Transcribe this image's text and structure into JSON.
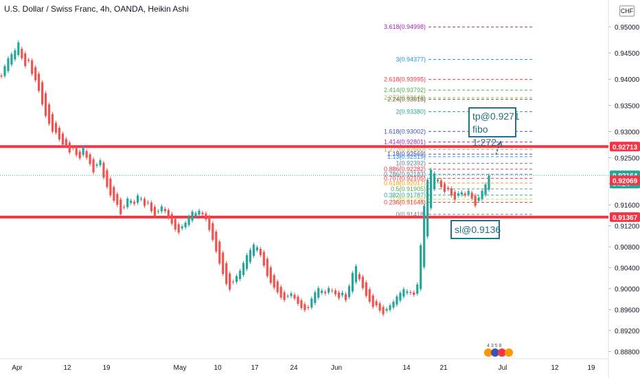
{
  "header": {
    "title": "U.S. Dollar / Swiss Franc, 4h, OANDA, Heikin Ashi",
    "currency_button": "CHF"
  },
  "colors": {
    "up": "#26a69a",
    "down": "#ef5350",
    "sr_line": "#f23645",
    "current_price": "#26a69a",
    "annotation": "#26708a"
  },
  "annotations": {
    "tp_line1": "tp@0.9271",
    "tp_line2": "fibo 1:272",
    "sl": "sl@0.9136"
  },
  "upcoming_events": {
    "numbers": "4 3 5 8"
  },
  "chart_data": {
    "type": "candlestick",
    "title": "U.S. Dollar / Swiss Franc, 4h, OANDA, Heikin Ashi",
    "ylim": [
      0.887,
      0.9525
    ],
    "y_ticks": [
      "0.95000",
      "0.94500",
      "0.94000",
      "0.93500",
      "0.93000",
      "0.92500",
      "0.92000",
      "0.91600",
      "0.91200",
      "0.90800",
      "0.90400",
      "0.90000",
      "0.89600",
      "0.89200",
      "0.88800"
    ],
    "x_ticks": [
      "Apr",
      "12",
      "19",
      "May",
      "10",
      "17",
      "24",
      "Jun",
      "14",
      "21",
      "Jul",
      "12",
      "19"
    ],
    "price_marks": [
      {
        "label": "0.92713",
        "kind": "resistance",
        "color": "#f23645"
      },
      {
        "label": "0.92164",
        "kind": "current",
        "color": "#26a69a",
        "countdown": "04:24"
      },
      {
        "label": "0.92069",
        "kind": "open",
        "color": "#f23645"
      },
      {
        "label": "0.91367",
        "kind": "support",
        "color": "#f23645"
      }
    ],
    "horizontal_lines": [
      {
        "price": 0.92713,
        "label": "0.92713"
      },
      {
        "price": 0.91367,
        "label": "0.91367"
      }
    ],
    "fib_levels": [
      {
        "label": "3.618(0.94998)",
        "value": 0.94998,
        "color": "#9c27b0"
      },
      {
        "label": "3(0.94377)",
        "value": 0.94377,
        "color": "#2196f3"
      },
      {
        "label": "2.618(0.93995)",
        "value": 0.93995,
        "color": "#f23645"
      },
      {
        "label": "2.414(0.93792)",
        "value": 0.93792,
        "color": "#4caf50"
      },
      {
        "label": "2.272(0.93648)",
        "value": 0.93648,
        "color": "#8bc34a"
      },
      {
        "label": "2.24(0.93618)",
        "value": 0.93618,
        "color": "#795548"
      },
      {
        "label": "2(0.93380)",
        "value": 0.9338,
        "color": "#26a69a"
      },
      {
        "label": "1.618(0.93002)",
        "value": 0.93002,
        "color": "#3f51b5"
      },
      {
        "label": "1.414(0.92801)",
        "value": 0.92801,
        "color": "#9c27b0"
      },
      {
        "label": "1.272(0.92660)",
        "value": 0.9266,
        "color": "#8bc34a"
      },
      {
        "label": "1.18(0.92569)",
        "value": 0.92569,
        "color": "#673ab7"
      },
      {
        "label": "1.13(0.92519)",
        "value": 0.92519,
        "color": "#2196f3"
      },
      {
        "label": "1(0.92392)",
        "value": 0.92392,
        "color": "#607d8b"
      },
      {
        "label": "0.886(0.92282)",
        "value": 0.92282,
        "color": "#f23645"
      },
      {
        "label": "0.786(0.92183)",
        "value": 0.92183,
        "color": "#607d8b"
      },
      {
        "label": "0.707(0.92105)",
        "value": 0.92105,
        "color": "#f23645"
      },
      {
        "label": "0.618(0.92017)",
        "value": 0.92017,
        "color": "#ff9800"
      },
      {
        "label": "0.5(0.91905)",
        "value": 0.91905,
        "color": "#4caf50"
      },
      {
        "label": "0.382(0.91787)",
        "value": 0.91787,
        "color": "#26a69a"
      },
      {
        "label": "0.3(0.91706)",
        "value": 0.91706,
        "color": "#cddc39"
      },
      {
        "label": "0.236(0.91648)",
        "value": 0.91648,
        "color": "#f23645"
      },
      {
        "label": "0(0.91418)",
        "value": 0.91418,
        "color": "#787b86"
      }
    ],
    "candles_close": [
      0.9405,
      0.9425,
      0.944,
      0.9448,
      0.9455,
      0.947,
      0.944,
      0.9425,
      0.9435,
      0.941,
      0.9398,
      0.9378,
      0.9352,
      0.933,
      0.9315,
      0.93,
      0.9298,
      0.9285,
      0.9275,
      0.9272,
      0.926,
      0.9268,
      0.9255,
      0.9249,
      0.927,
      0.925,
      0.9238,
      0.9222,
      0.9237,
      0.9245,
      0.9212,
      0.9194,
      0.9178,
      0.9168,
      0.916,
      0.9142,
      0.9155,
      0.9172,
      0.9168,
      0.9162,
      0.9178,
      0.9172,
      0.9158,
      0.9164,
      0.9148,
      0.9138,
      0.9148,
      0.9157,
      0.9148,
      0.9135,
      0.9124,
      0.9113,
      0.9107,
      0.9119,
      0.9126,
      0.9138,
      0.9147,
      0.9144,
      0.9149,
      0.9142,
      0.9132,
      0.9112,
      0.9093,
      0.9071,
      0.9048,
      0.9028,
      0.9009,
      0.8998,
      0.9012,
      0.9024,
      0.9034,
      0.9049,
      0.9064,
      0.9074,
      0.9084,
      0.9079,
      0.9064,
      0.9044,
      0.9024,
      0.9011,
      0.9002,
      0.8993,
      0.8983,
      0.8978,
      0.8986,
      0.8991,
      0.8981,
      0.8971,
      0.8963,
      0.8959,
      0.8963,
      0.8981,
      0.8993,
      0.9001,
      0.8996,
      0.8991,
      0.9001,
      0.8996,
      0.8989,
      0.8982,
      0.8992,
      0.8978,
      0.9005,
      0.903,
      0.9043,
      0.9018,
      0.9001,
      0.8986,
      0.8975,
      0.8965,
      0.8968,
      0.8958,
      0.8951,
      0.8961,
      0.8968,
      0.8975,
      0.8985,
      0.8992,
      0.8999,
      0.8995,
      0.8992,
      0.8988,
      0.9008,
      0.9083,
      0.9158,
      0.9208,
      0.9227,
      0.922,
      0.9208,
      0.9194,
      0.9185,
      0.919,
      0.9178,
      0.917,
      0.9182,
      0.9184,
      0.9178,
      0.9187,
      0.9172,
      0.9158,
      0.9174,
      0.9187,
      0.9199,
      0.9216
    ]
  }
}
